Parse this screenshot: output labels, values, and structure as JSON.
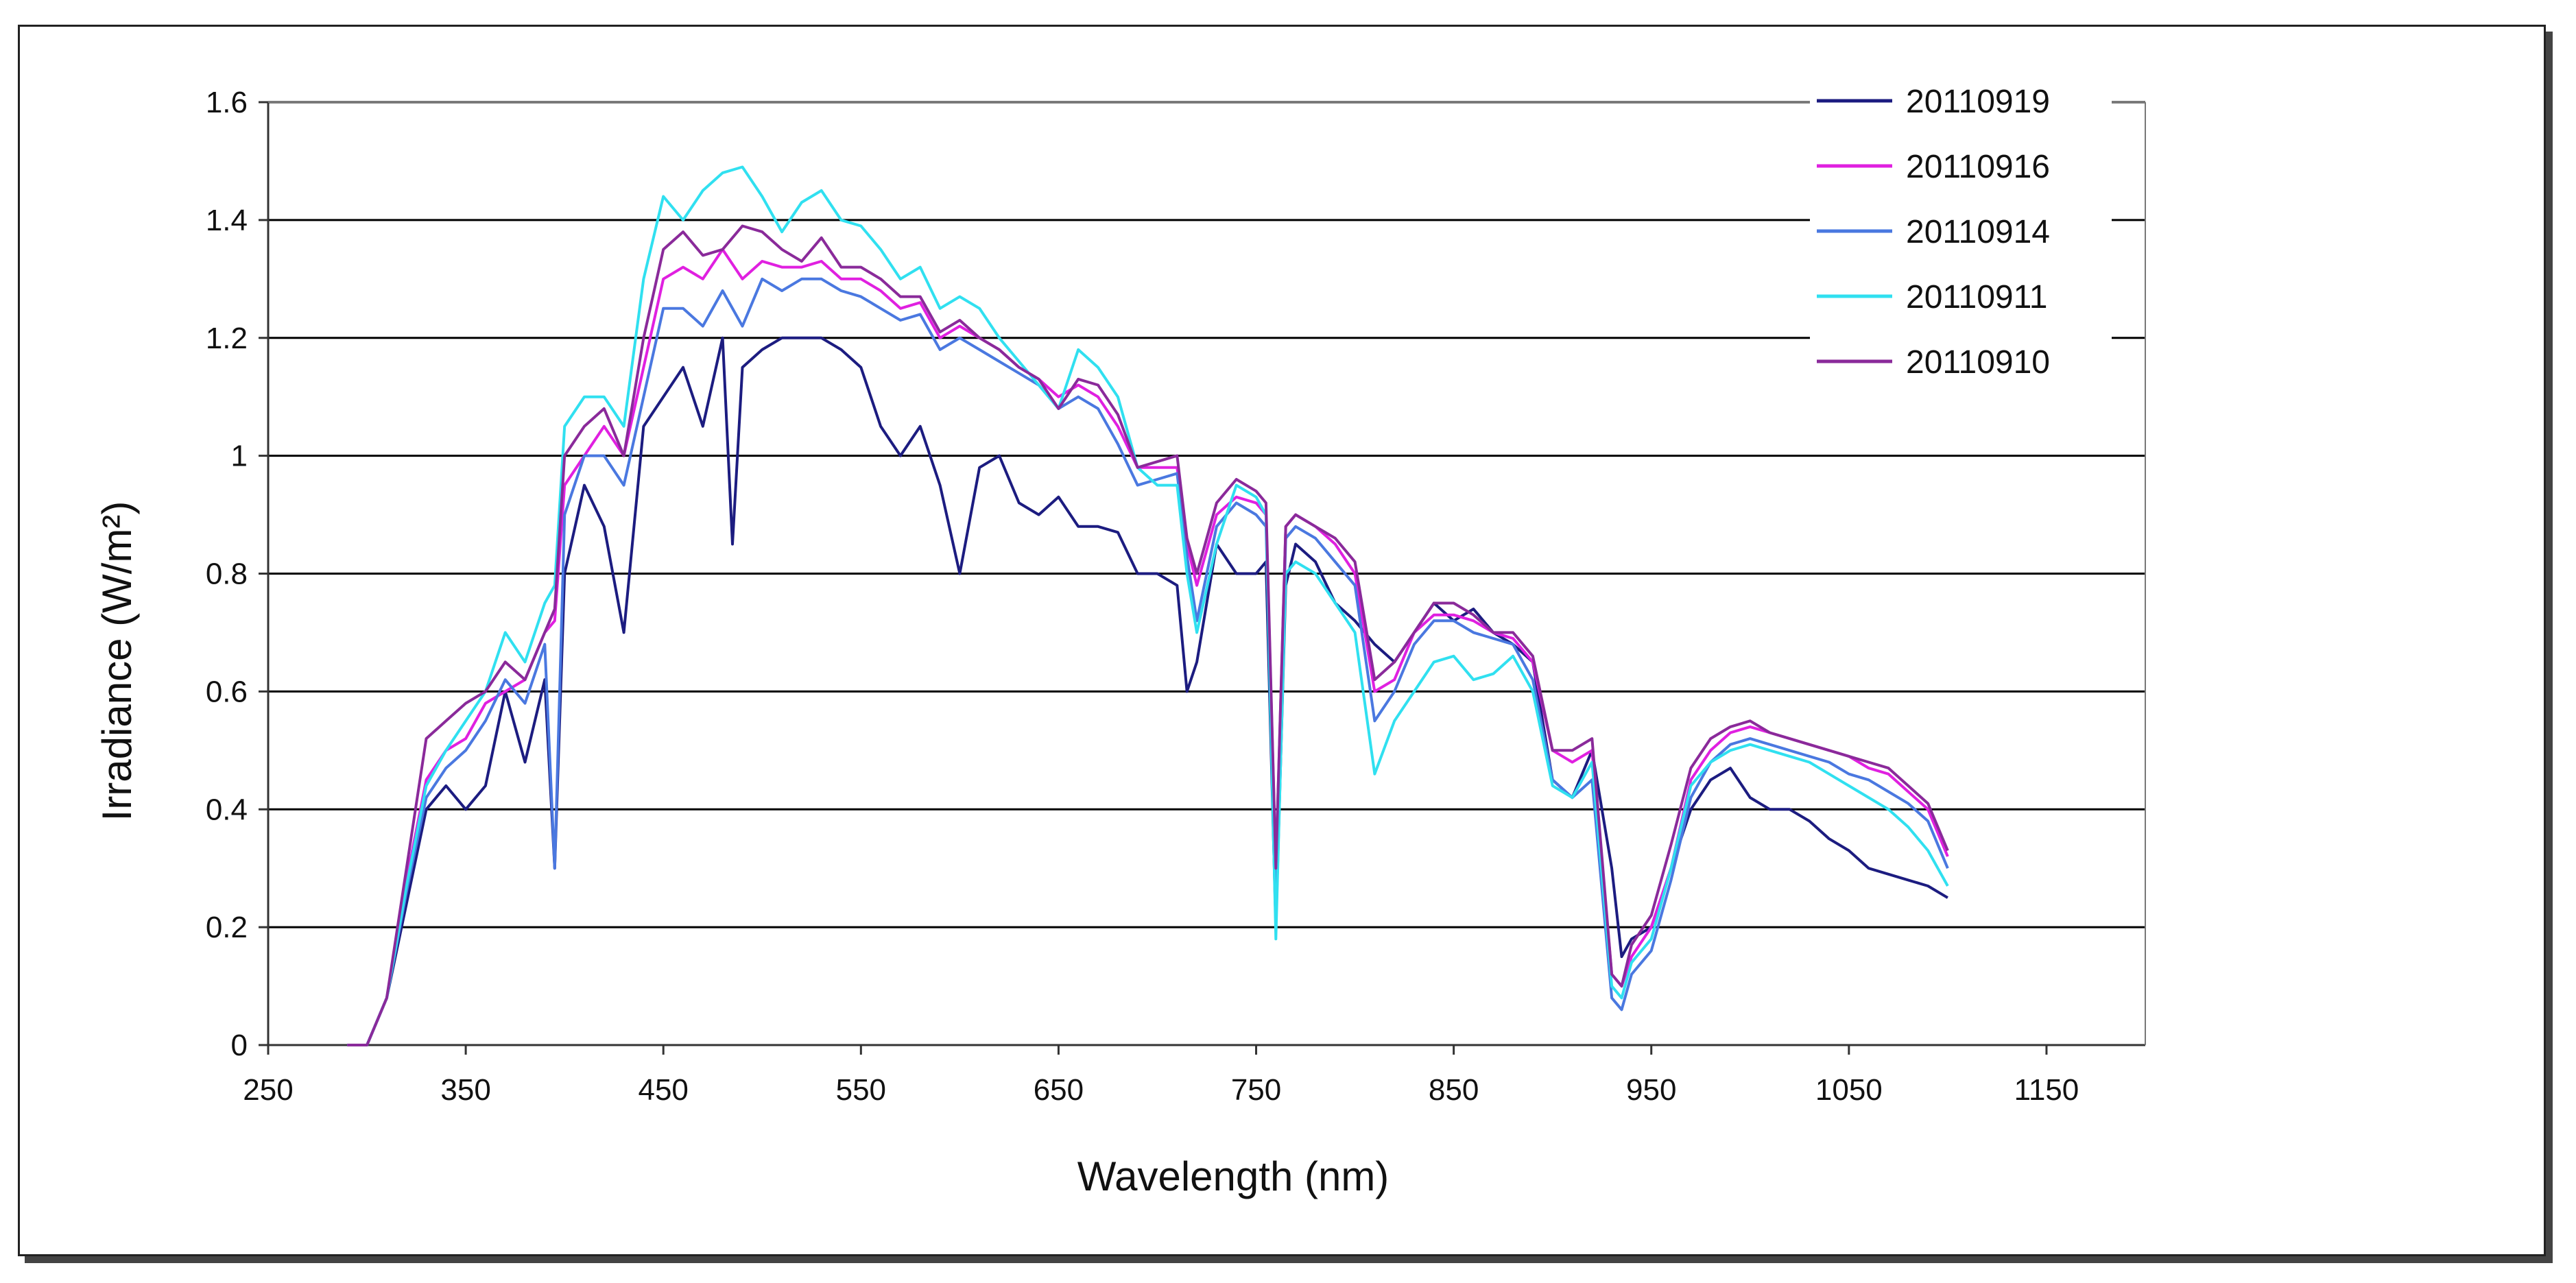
{
  "chart_data": {
    "type": "line",
    "title": "",
    "xlabel": "Wavelength  (nm)",
    "ylabel": "Irradiance  (W/m²)",
    "xlim": [
      250,
      1200
    ],
    "ylim": [
      0,
      1.6
    ],
    "x_ticks": [
      "250",
      "350",
      "450",
      "550",
      "650",
      "750",
      "850",
      "950",
      "1050",
      "1150"
    ],
    "y_ticks": [
      "0",
      "0.2",
      "0.4",
      "0.6",
      "0.8",
      "1",
      "1.2",
      "1.4",
      "1.6"
    ],
    "grid": "horizontal",
    "legend_position": "top-right",
    "series": [
      {
        "name": "20110919",
        "color": "#1c1c80",
        "x": [
          290,
          300,
          310,
          320,
          330,
          340,
          350,
          360,
          370,
          380,
          390,
          395,
          400,
          410,
          420,
          430,
          440,
          450,
          460,
          470,
          480,
          485,
          490,
          500,
          510,
          520,
          530,
          540,
          550,
          560,
          570,
          580,
          590,
          600,
          610,
          620,
          630,
          640,
          650,
          660,
          670,
          680,
          690,
          700,
          710,
          715,
          720,
          730,
          740,
          750,
          755,
          760,
          765,
          770,
          780,
          790,
          800,
          810,
          820,
          830,
          840,
          850,
          860,
          870,
          880,
          890,
          900,
          910,
          920,
          930,
          935,
          940,
          950,
          960,
          970,
          980,
          990,
          1000,
          1010,
          1020,
          1030,
          1040,
          1050,
          1060,
          1070,
          1080,
          1090,
          1100
        ],
        "y": [
          0,
          0,
          0.08,
          0.24,
          0.4,
          0.44,
          0.4,
          0.44,
          0.6,
          0.48,
          0.62,
          0.3,
          0.8,
          0.95,
          0.88,
          0.7,
          1.05,
          1.1,
          1.15,
          1.05,
          1.2,
          0.85,
          1.15,
          1.18,
          1.2,
          1.2,
          1.2,
          1.18,
          1.15,
          1.05,
          1.0,
          1.05,
          0.95,
          0.8,
          0.98,
          1.0,
          0.92,
          0.9,
          0.93,
          0.88,
          0.88,
          0.87,
          0.8,
          0.8,
          0.78,
          0.6,
          0.65,
          0.85,
          0.8,
          0.8,
          0.82,
          0.2,
          0.78,
          0.85,
          0.82,
          0.75,
          0.72,
          0.68,
          0.65,
          0.7,
          0.75,
          0.72,
          0.74,
          0.7,
          0.68,
          0.65,
          0.45,
          0.42,
          0.5,
          0.3,
          0.15,
          0.18,
          0.2,
          0.3,
          0.4,
          0.45,
          0.47,
          0.42,
          0.4,
          0.4,
          0.38,
          0.35,
          0.33,
          0.3,
          0.29,
          0.28,
          0.27,
          0.25
        ]
      },
      {
        "name": "20110916",
        "color": "#e020e0",
        "x": [
          290,
          300,
          310,
          320,
          330,
          340,
          350,
          360,
          370,
          380,
          390,
          395,
          400,
          410,
          420,
          430,
          440,
          450,
          460,
          470,
          480,
          490,
          500,
          510,
          520,
          530,
          540,
          550,
          560,
          570,
          580,
          590,
          600,
          610,
          620,
          630,
          640,
          650,
          660,
          670,
          680,
          690,
          700,
          710,
          715,
          720,
          730,
          740,
          750,
          755,
          760,
          765,
          770,
          780,
          790,
          800,
          810,
          820,
          830,
          840,
          850,
          860,
          870,
          880,
          890,
          900,
          910,
          920,
          930,
          935,
          940,
          950,
          960,
          970,
          980,
          990,
          1000,
          1010,
          1020,
          1030,
          1040,
          1050,
          1060,
          1070,
          1080,
          1090,
          1100
        ],
        "y": [
          0,
          0,
          0.08,
          0.28,
          0.45,
          0.5,
          0.52,
          0.58,
          0.6,
          0.62,
          0.7,
          0.72,
          0.95,
          1.0,
          1.05,
          1.0,
          1.15,
          1.3,
          1.32,
          1.3,
          1.35,
          1.3,
          1.33,
          1.32,
          1.32,
          1.33,
          1.3,
          1.3,
          1.28,
          1.25,
          1.26,
          1.2,
          1.22,
          1.2,
          1.18,
          1.15,
          1.13,
          1.1,
          1.12,
          1.1,
          1.05,
          0.98,
          0.98,
          0.98,
          0.85,
          0.78,
          0.9,
          0.93,
          0.92,
          0.9,
          0.3,
          0.88,
          0.9,
          0.88,
          0.85,
          0.8,
          0.6,
          0.62,
          0.7,
          0.73,
          0.73,
          0.72,
          0.7,
          0.69,
          0.65,
          0.5,
          0.48,
          0.5,
          0.12,
          0.1,
          0.15,
          0.2,
          0.3,
          0.45,
          0.5,
          0.53,
          0.54,
          0.53,
          0.52,
          0.51,
          0.5,
          0.49,
          0.47,
          0.46,
          0.43,
          0.4,
          0.32
        ]
      },
      {
        "name": "20110914",
        "color": "#4a78e0",
        "x": [
          290,
          300,
          310,
          320,
          330,
          340,
          350,
          360,
          370,
          380,
          390,
          395,
          400,
          410,
          420,
          430,
          440,
          450,
          460,
          470,
          480,
          490,
          500,
          510,
          520,
          530,
          540,
          550,
          560,
          570,
          580,
          590,
          600,
          610,
          620,
          630,
          640,
          650,
          660,
          670,
          680,
          690,
          700,
          710,
          715,
          720,
          730,
          740,
          750,
          755,
          760,
          765,
          770,
          780,
          790,
          800,
          810,
          820,
          830,
          840,
          850,
          860,
          870,
          880,
          890,
          900,
          910,
          920,
          930,
          935,
          940,
          950,
          960,
          970,
          980,
          990,
          1000,
          1010,
          1020,
          1030,
          1040,
          1050,
          1060,
          1070,
          1080,
          1090,
          1100
        ],
        "y": [
          0,
          0,
          0.08,
          0.26,
          0.42,
          0.47,
          0.5,
          0.55,
          0.62,
          0.58,
          0.68,
          0.3,
          0.9,
          1.0,
          1.0,
          0.95,
          1.1,
          1.25,
          1.25,
          1.22,
          1.28,
          1.22,
          1.3,
          1.28,
          1.3,
          1.3,
          1.28,
          1.27,
          1.25,
          1.23,
          1.24,
          1.18,
          1.2,
          1.18,
          1.16,
          1.14,
          1.12,
          1.08,
          1.1,
          1.08,
          1.02,
          0.95,
          0.96,
          0.97,
          0.83,
          0.72,
          0.88,
          0.92,
          0.9,
          0.88,
          0.25,
          0.86,
          0.88,
          0.86,
          0.82,
          0.78,
          0.55,
          0.6,
          0.68,
          0.72,
          0.72,
          0.7,
          0.69,
          0.68,
          0.62,
          0.45,
          0.42,
          0.45,
          0.08,
          0.06,
          0.12,
          0.16,
          0.28,
          0.42,
          0.48,
          0.51,
          0.52,
          0.51,
          0.5,
          0.49,
          0.48,
          0.46,
          0.45,
          0.43,
          0.41,
          0.38,
          0.3
        ]
      },
      {
        "name": "20110911",
        "color": "#30e0f0",
        "x": [
          290,
          300,
          310,
          320,
          330,
          340,
          350,
          360,
          370,
          380,
          390,
          395,
          400,
          410,
          420,
          430,
          440,
          450,
          460,
          470,
          480,
          490,
          500,
          510,
          520,
          530,
          540,
          550,
          560,
          570,
          580,
          590,
          600,
          610,
          620,
          630,
          640,
          650,
          660,
          670,
          680,
          690,
          700,
          710,
          715,
          720,
          730,
          740,
          750,
          755,
          760,
          765,
          770,
          780,
          790,
          800,
          810,
          820,
          830,
          840,
          850,
          860,
          870,
          880,
          890,
          900,
          910,
          920,
          930,
          935,
          940,
          950,
          960,
          970,
          980,
          990,
          1000,
          1010,
          1020,
          1030,
          1040,
          1050,
          1060,
          1070,
          1080,
          1090,
          1100
        ],
        "y": [
          0,
          0,
          0.08,
          0.27,
          0.44,
          0.5,
          0.55,
          0.6,
          0.7,
          0.65,
          0.75,
          0.78,
          1.05,
          1.1,
          1.1,
          1.05,
          1.3,
          1.44,
          1.4,
          1.45,
          1.48,
          1.49,
          1.44,
          1.38,
          1.43,
          1.45,
          1.4,
          1.39,
          1.35,
          1.3,
          1.32,
          1.25,
          1.27,
          1.25,
          1.2,
          1.16,
          1.12,
          1.08,
          1.18,
          1.15,
          1.1,
          0.98,
          0.95,
          0.95,
          0.8,
          0.7,
          0.85,
          0.95,
          0.93,
          0.9,
          0.18,
          0.8,
          0.82,
          0.8,
          0.75,
          0.7,
          0.46,
          0.55,
          0.6,
          0.65,
          0.66,
          0.62,
          0.63,
          0.66,
          0.6,
          0.44,
          0.42,
          0.48,
          0.1,
          0.08,
          0.14,
          0.18,
          0.3,
          0.44,
          0.48,
          0.5,
          0.51,
          0.5,
          0.49,
          0.48,
          0.46,
          0.44,
          0.42,
          0.4,
          0.37,
          0.33,
          0.27
        ]
      },
      {
        "name": "20110910",
        "color": "#8a2a9a",
        "x": [
          290,
          300,
          310,
          320,
          330,
          340,
          350,
          360,
          370,
          380,
          390,
          395,
          400,
          410,
          420,
          430,
          440,
          450,
          460,
          470,
          480,
          490,
          500,
          510,
          520,
          530,
          540,
          550,
          560,
          570,
          580,
          590,
          600,
          610,
          620,
          630,
          640,
          650,
          660,
          670,
          680,
          690,
          700,
          710,
          715,
          720,
          730,
          740,
          750,
          755,
          760,
          765,
          770,
          780,
          790,
          800,
          810,
          820,
          830,
          840,
          850,
          860,
          870,
          880,
          890,
          900,
          910,
          920,
          930,
          935,
          940,
          950,
          960,
          970,
          980,
          990,
          1000,
          1010,
          1020,
          1030,
          1040,
          1050,
          1060,
          1070,
          1080,
          1090,
          1100
        ],
        "y": [
          0,
          0,
          0.08,
          0.3,
          0.52,
          0.55,
          0.58,
          0.6,
          0.65,
          0.62,
          0.7,
          0.74,
          1.0,
          1.05,
          1.08,
          1.0,
          1.2,
          1.35,
          1.38,
          1.34,
          1.35,
          1.39,
          1.38,
          1.35,
          1.33,
          1.37,
          1.32,
          1.32,
          1.3,
          1.27,
          1.27,
          1.21,
          1.23,
          1.2,
          1.18,
          1.15,
          1.13,
          1.08,
          1.13,
          1.12,
          1.07,
          0.98,
          0.99,
          1.0,
          0.86,
          0.8,
          0.92,
          0.96,
          0.94,
          0.92,
          0.3,
          0.88,
          0.9,
          0.88,
          0.86,
          0.82,
          0.62,
          0.65,
          0.7,
          0.75,
          0.75,
          0.73,
          0.7,
          0.7,
          0.66,
          0.5,
          0.5,
          0.52,
          0.12,
          0.1,
          0.17,
          0.22,
          0.34,
          0.47,
          0.52,
          0.54,
          0.55,
          0.53,
          0.52,
          0.51,
          0.5,
          0.49,
          0.48,
          0.47,
          0.44,
          0.41,
          0.33
        ]
      }
    ]
  }
}
